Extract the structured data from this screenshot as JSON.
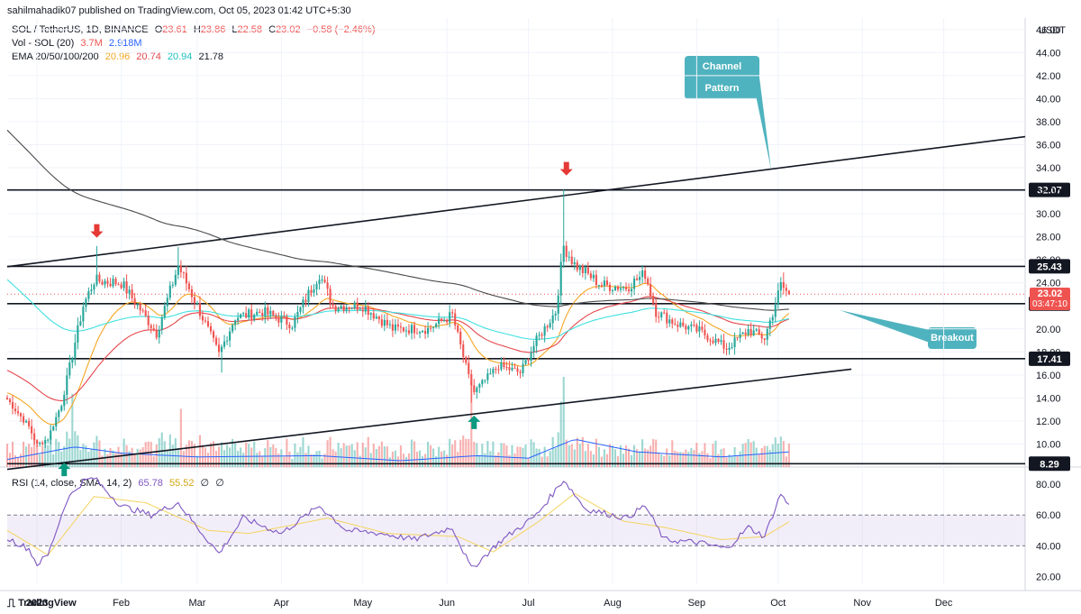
{
  "header": {
    "published": "sahilmahadik07 published on TradingView.com, Oct 05, 2023 01:42 UTC+5:30"
  },
  "legend": {
    "symbol": "SOL / TetherUS, 1D, BINANCE",
    "open_label": "O",
    "open": "23.61",
    "high_label": "H",
    "high": "23.86",
    "low_label": "L",
    "low": "22.58",
    "close_label": "C",
    "close": "23.02",
    "change": "−0.58 (−2.46%)",
    "vol_label": "Vol - SOL (20)",
    "vol_value": "3.7M",
    "vol_ma": "2.918M",
    "ema_label": "EMA 20/50/100/200",
    "ema20": "20.96",
    "ema50": "20.74",
    "ema100": "20.94",
    "ema200": "21.78"
  },
  "rsi_legend": {
    "label": "RSI (14, close, SMA, 14, 2)",
    "rsi": "65.78",
    "sma": "55.52",
    "v1": "∅",
    "v2": "∅"
  },
  "currency": "USDT",
  "last_price": {
    "price": "23.02",
    "countdown": "03:47:10"
  },
  "annotations": {
    "channel": "Channel Pattern",
    "breakout": "Breakout"
  },
  "brand": "TradingView",
  "colors": {
    "up": "#26a69a",
    "down": "#ef5350",
    "ema20": "#f5a623",
    "ema50": "#e5484d",
    "ema100": "#3fe0e0",
    "ema200": "#4a4a4a",
    "rsi": "#7e57c2",
    "rsi_sma": "#f4d35e",
    "callout": "#4fb3bf"
  },
  "chart_data": {
    "type": "candlestick",
    "y_ticks": [
      46,
      44,
      42,
      40,
      38,
      36,
      34,
      32,
      30,
      28,
      26,
      24,
      22,
      20,
      18,
      16,
      14,
      12,
      10
    ],
    "ylim": [
      8.0,
      47.0
    ],
    "x_ticks": [
      "2023",
      "Feb",
      "Mar",
      "Apr",
      "May",
      "Jun",
      "Jul",
      "Aug",
      "Sep",
      "Oct",
      "Nov",
      "Dec"
    ],
    "levels": [
      32.07,
      25.43,
      22.19,
      17.41,
      8.29
    ],
    "level_labels": [
      "32.07",
      "25.43",
      "22.19",
      "17.41",
      "8.29"
    ],
    "channel_upper": {
      "start": [
        "2022-12-21",
        25.4
      ],
      "end": [
        "2023-12-31",
        36.7
      ]
    },
    "channel_lower": {
      "start": [
        "2022-12-21",
        7.8
      ],
      "end": [
        "2023-10-28",
        16.5
      ]
    },
    "sell_markers": [
      [
        "2023-01-23",
        28.0
      ],
      [
        "2023-07-15",
        33.4
      ]
    ],
    "buy_markers": [
      [
        "2023-06-11",
        12.4
      ],
      [
        "2023-01-11",
        8.3
      ]
    ],
    "close_anchors": [
      [
        "2022-12-21",
        13.9
      ],
      [
        "2022-12-29",
        11.5
      ],
      [
        "2023-01-01",
        9.9
      ],
      [
        "2023-01-05",
        10.5
      ],
      [
        "2023-01-10",
        13.5
      ],
      [
        "2023-01-14",
        17.8
      ],
      [
        "2023-01-18",
        22.0
      ],
      [
        "2023-01-22",
        24.2
      ],
      [
        "2023-02-01",
        24.0
      ],
      [
        "2023-02-08",
        21.7
      ],
      [
        "2023-02-14",
        19.6
      ],
      [
        "2023-02-22",
        25.5
      ],
      [
        "2023-03-01",
        22.0
      ],
      [
        "2023-03-09",
        17.8
      ],
      [
        "2023-03-15",
        21.0
      ],
      [
        "2023-03-25",
        21.5
      ],
      [
        "2023-04-05",
        20.4
      ],
      [
        "2023-04-15",
        24.8
      ],
      [
        "2023-04-20",
        22.0
      ],
      [
        "2023-05-01",
        22.0
      ],
      [
        "2023-05-12",
        20.0
      ],
      [
        "2023-05-25",
        20.0
      ],
      [
        "2023-06-03",
        21.2
      ],
      [
        "2023-06-09",
        15.8
      ],
      [
        "2023-06-11",
        14.5
      ],
      [
        "2023-06-20",
        16.8
      ],
      [
        "2023-06-28",
        16.2
      ],
      [
        "2023-07-04",
        19.0
      ],
      [
        "2023-07-11",
        21.5
      ],
      [
        "2023-07-14",
        27.2
      ],
      [
        "2023-07-18",
        25.6
      ],
      [
        "2023-07-28",
        23.8
      ],
      [
        "2023-08-06",
        23.6
      ],
      [
        "2023-08-13",
        24.8
      ],
      [
        "2023-08-17",
        21.5
      ],
      [
        "2023-08-24",
        20.5
      ],
      [
        "2023-09-02",
        19.8
      ],
      [
        "2023-09-09",
        18.8
      ],
      [
        "2023-09-12",
        18.3
      ],
      [
        "2023-09-20",
        19.9
      ],
      [
        "2023-09-26",
        19.2
      ],
      [
        "2023-09-29",
        21.4
      ],
      [
        "2023-10-02",
        23.8
      ],
      [
        "2023-10-05",
        23.02
      ]
    ],
    "volume_ma_anchors": [
      [
        "2022-12-21",
        0.6
      ],
      [
        "2023-01-15",
        1.6
      ],
      [
        "2023-02-01",
        1.1
      ],
      [
        "2023-03-01",
        0.8
      ],
      [
        "2023-04-15",
        0.9
      ],
      [
        "2023-05-15",
        0.5
      ],
      [
        "2023-06-12",
        0.9
      ],
      [
        "2023-07-01",
        0.7
      ],
      [
        "2023-07-18",
        2.2
      ],
      [
        "2023-08-10",
        1.2
      ],
      [
        "2023-09-10",
        0.8
      ],
      [
        "2023-10-05",
        1.2
      ]
    ],
    "rsi": {
      "y_ticks": [
        80,
        60,
        40,
        20
      ],
      "ylim": [
        15,
        90
      ],
      "band": [
        40,
        60
      ],
      "anchors": [
        [
          "2022-12-21",
          45
        ],
        [
          "2022-12-29",
          38
        ],
        [
          "2023-01-01",
          28
        ],
        [
          "2023-01-05",
          34
        ],
        [
          "2023-01-12",
          70
        ],
        [
          "2023-01-18",
          82
        ],
        [
          "2023-01-22",
          84
        ],
        [
          "2023-02-01",
          66
        ],
        [
          "2023-02-12",
          60
        ],
        [
          "2023-02-22",
          68
        ],
        [
          "2023-03-01",
          52
        ],
        [
          "2023-03-09",
          35
        ],
        [
          "2023-03-18",
          58
        ],
        [
          "2023-04-01",
          48
        ],
        [
          "2023-04-15",
          66
        ],
        [
          "2023-04-25",
          50
        ],
        [
          "2023-05-08",
          48
        ],
        [
          "2023-05-20",
          44
        ],
        [
          "2023-06-03",
          52
        ],
        [
          "2023-06-10",
          25
        ],
        [
          "2023-06-20",
          42
        ],
        [
          "2023-07-04",
          60
        ],
        [
          "2023-07-14",
          83
        ],
        [
          "2023-07-22",
          64
        ],
        [
          "2023-08-06",
          58
        ],
        [
          "2023-08-13",
          66
        ],
        [
          "2023-08-20",
          44
        ],
        [
          "2023-09-02",
          42
        ],
        [
          "2023-09-12",
          38
        ],
        [
          "2023-09-20",
          52
        ],
        [
          "2023-09-26",
          46
        ],
        [
          "2023-10-02",
          74
        ],
        [
          "2023-10-05",
          65.78
        ]
      ],
      "sma_anchors": [
        [
          "2022-12-21",
          50
        ],
        [
          "2023-01-05",
          34
        ],
        [
          "2023-01-22",
          72
        ],
        [
          "2023-02-10",
          68
        ],
        [
          "2023-03-05",
          50
        ],
        [
          "2023-03-20",
          48
        ],
        [
          "2023-04-18",
          58
        ],
        [
          "2023-05-10",
          48
        ],
        [
          "2023-06-05",
          46
        ],
        [
          "2023-06-18",
          36
        ],
        [
          "2023-07-05",
          56
        ],
        [
          "2023-07-18",
          74
        ],
        [
          "2023-08-05",
          56
        ],
        [
          "2023-08-20",
          52
        ],
        [
          "2023-09-10",
          44
        ],
        [
          "2023-09-26",
          46
        ],
        [
          "2023-10-05",
          55.52
        ]
      ]
    }
  }
}
